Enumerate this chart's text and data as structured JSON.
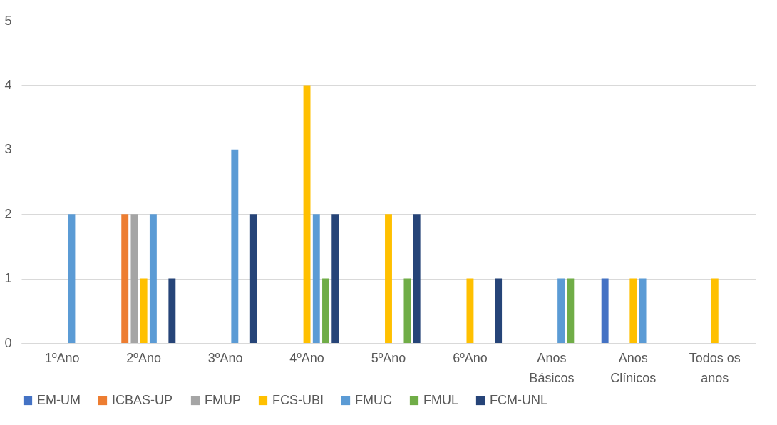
{
  "chart_data": {
    "type": "bar",
    "categories": [
      "1ºAno",
      "2ºAno",
      "3ºAno",
      "4ºAno",
      "5ºAno",
      "6ºAno",
      "Anos Básicos",
      "Anos Clínicos",
      "Todos os anos"
    ],
    "series": [
      {
        "name": "EM-UM",
        "color": "#4472c4",
        "values": [
          0,
          0,
          0,
          0,
          0,
          0,
          0,
          1,
          0
        ]
      },
      {
        "name": "ICBAS-UP",
        "color": "#ed7d31",
        "values": [
          0,
          2,
          0,
          0,
          0,
          0,
          0,
          0,
          0
        ]
      },
      {
        "name": "FMUP",
        "color": "#a5a5a5",
        "values": [
          0,
          2,
          0,
          0,
          0,
          0,
          0,
          0,
          0
        ]
      },
      {
        "name": "FCS-UBI",
        "color": "#ffc000",
        "values": [
          0,
          1,
          0,
          4,
          2,
          1,
          0,
          1,
          1
        ]
      },
      {
        "name": "FMUC",
        "color": "#5b9bd5",
        "values": [
          2,
          2,
          3,
          2,
          0,
          0,
          1,
          1,
          0
        ]
      },
      {
        "name": "FMUL",
        "color": "#70ad47",
        "values": [
          0,
          0,
          0,
          1,
          1,
          0,
          1,
          0,
          0
        ]
      },
      {
        "name": "FCM-UNL",
        "color": "#264478",
        "values": [
          0,
          1,
          2,
          2,
          2,
          1,
          0,
          0,
          0
        ]
      }
    ],
    "ylim": [
      0,
      5
    ],
    "yticks": [
      0,
      1,
      2,
      3,
      4,
      5
    ],
    "grid": "y",
    "legend": "bottom"
  }
}
